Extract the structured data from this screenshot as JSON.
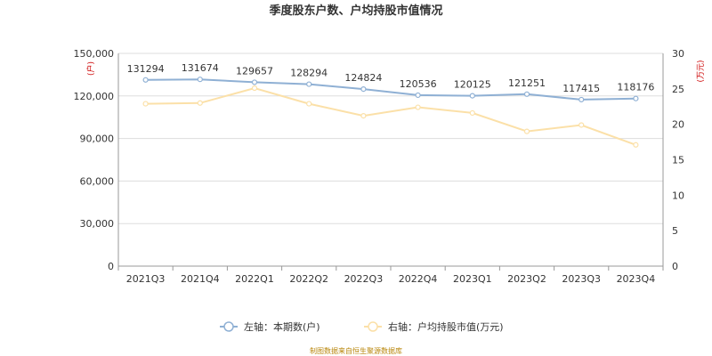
{
  "chart_data": {
    "type": "line",
    "title": "季度股东户数、户均持股市值情况",
    "categories": [
      "2021Q3",
      "2021Q4",
      "2022Q1",
      "2022Q2",
      "2022Q3",
      "2022Q4",
      "2023Q1",
      "2023Q2",
      "2023Q3",
      "2023Q4"
    ],
    "left_axis": {
      "unit_label": "(户)",
      "range": [
        0,
        150000
      ],
      "ticks": [
        "0",
        "30,000",
        "60,000",
        "90,000",
        "120,000",
        "150,000"
      ]
    },
    "right_axis": {
      "unit_label": "(万元)",
      "range": [
        0,
        30
      ],
      "ticks": [
        "0",
        "5",
        "10",
        "15",
        "20",
        "25",
        "30"
      ]
    },
    "series": [
      {
        "name": "左轴：本期数(户)",
        "axis": "left",
        "color": "#8fb0d4",
        "values": [
          131294,
          131674,
          129657,
          128294,
          124824,
          120536,
          120125,
          121251,
          117415,
          118176
        ],
        "labels": [
          "131294",
          "131674",
          "129657",
          "128294",
          "124824",
          "120536",
          "120125",
          "121251",
          "117415",
          "118176"
        ]
      },
      {
        "name": "右轴：户均持股市值(万元)",
        "axis": "right",
        "color": "#fbe0a8",
        "values": [
          22.9,
          23.0,
          25.1,
          22.9,
          21.2,
          22.4,
          21.6,
          19.0,
          19.9,
          17.1
        ]
      }
    ],
    "grid": "horizontal",
    "legend_position": "bottom-center",
    "source": "制图数据来自恒生聚源数据库"
  }
}
